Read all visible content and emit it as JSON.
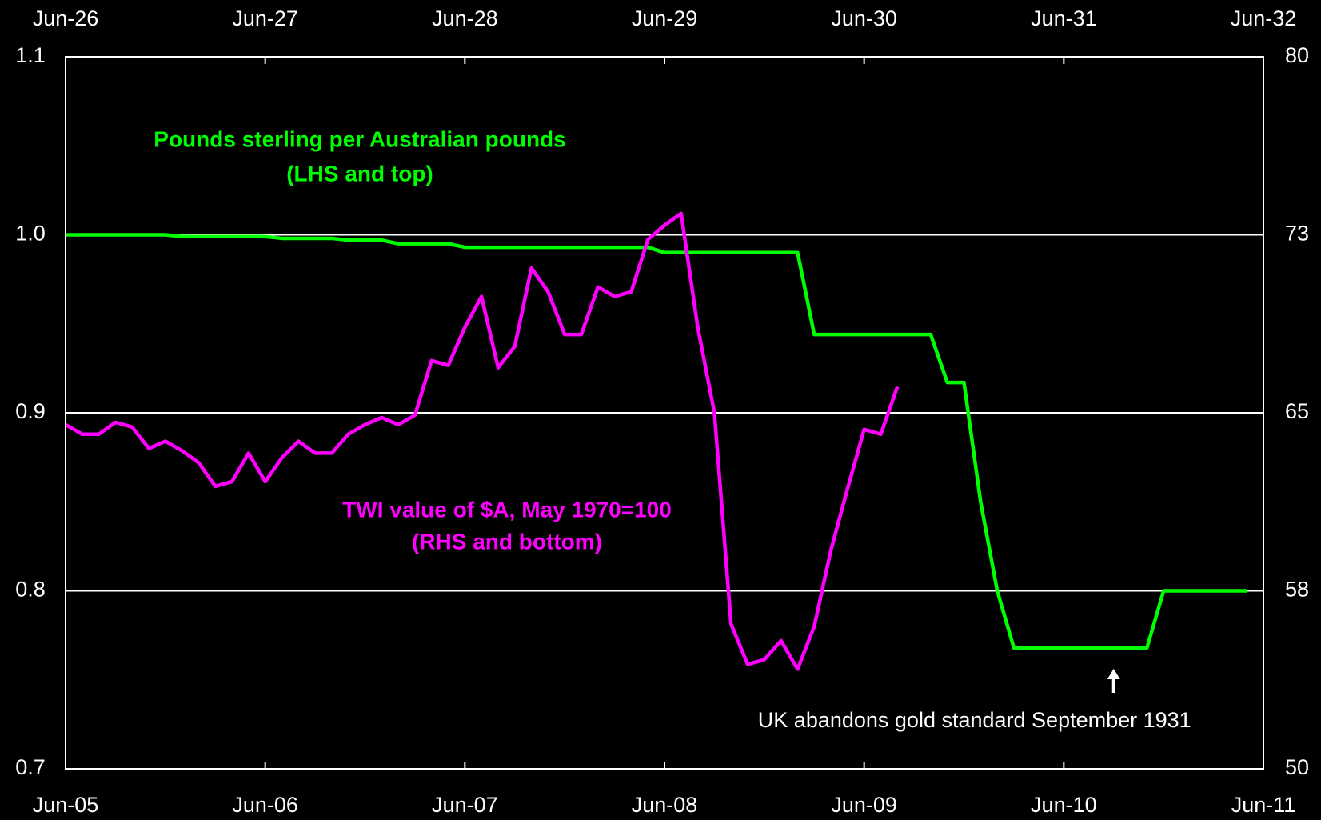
{
  "chart_data": [
    {
      "type": "line",
      "xaxis": "top",
      "xlim": [
        0,
        72
      ],
      "xticks": [
        {
          "value": 0,
          "label": "Jun-26"
        },
        {
          "value": 12,
          "label": "Jun-27"
        },
        {
          "value": 24,
          "label": "Jun-28"
        },
        {
          "value": 36,
          "label": "Jun-29"
        },
        {
          "value": 48,
          "label": "Jun-30"
        },
        {
          "value": 60,
          "label": "Jun-31"
        },
        {
          "value": 72,
          "label": "Jun-32"
        }
      ],
      "ylim": [
        0.7,
        1.1
      ],
      "yticks": [
        0.7,
        0.8,
        0.9,
        {
          "value": 1,
          "label": "1.0"
        },
        1.1
      ],
      "grid": true,
      "x": [
        0,
        1,
        2,
        3,
        4,
        5,
        6,
        7,
        8,
        9,
        10,
        11,
        12,
        13,
        14,
        15,
        16,
        17,
        18,
        19,
        20,
        21,
        22,
        23,
        24,
        25,
        26,
        27,
        28,
        29,
        30,
        31,
        32,
        33,
        34,
        35,
        36,
        37,
        38,
        39,
        40,
        41,
        42,
        43,
        44,
        45,
        46,
        47,
        48,
        49,
        50,
        51,
        52,
        53,
        54,
        55,
        56,
        57,
        58,
        59,
        60,
        61,
        62,
        63,
        64,
        65,
        66,
        67,
        68,
        69,
        70,
        71
      ],
      "series": [
        {
          "name": "Pounds sterling per Australian pounds",
          "note": "(LHS and top)",
          "color": "#00ff00",
          "values": [
            1.0,
            1.0,
            1.0,
            1.0,
            1.0,
            1.0,
            1.0,
            0.999,
            0.999,
            0.999,
            0.999,
            0.999,
            0.999,
            0.998,
            0.998,
            0.998,
            0.998,
            0.997,
            0.997,
            0.997,
            0.995,
            0.995,
            0.995,
            0.995,
            0.993,
            0.993,
            0.993,
            0.993,
            0.993,
            0.993,
            0.993,
            0.993,
            0.993,
            0.993,
            0.993,
            0.993,
            0.99,
            0.99,
            0.99,
            0.99,
            0.99,
            0.99,
            0.99,
            0.99,
            0.99,
            0.944,
            0.944,
            0.944,
            0.944,
            0.944,
            0.944,
            0.944,
            0.944,
            0.917,
            0.917,
            0.85,
            0.8,
            0.768,
            0.768,
            0.768,
            0.768,
            0.768,
            0.768,
            0.768,
            0.768,
            0.768,
            0.8,
            0.8,
            0.8,
            0.8,
            0.8,
            0.8
          ]
        }
      ],
      "annotations": [
        {
          "text": "UK abandons gold standard September 1931",
          "x": 63
        }
      ]
    },
    {
      "type": "line",
      "xaxis": "bottom",
      "xlim": [
        0,
        72
      ],
      "xticks": [
        {
          "value": 0,
          "label": "Jun-05"
        },
        {
          "value": 12,
          "label": "Jun-06"
        },
        {
          "value": 24,
          "label": "Jun-07"
        },
        {
          "value": 36,
          "label": "Jun-08"
        },
        {
          "value": 48,
          "label": "Jun-09"
        },
        {
          "value": 60,
          "label": "Jun-10"
        },
        {
          "value": 72,
          "label": "Jun-11"
        }
      ],
      "y2lim": [
        50,
        80
      ],
      "y2ticks": [
        50,
        {
          "value": 57.5,
          "label": "58"
        },
        65,
        {
          "value": 72.5,
          "label": "73"
        },
        80
      ],
      "x": [
        0,
        1,
        2,
        3,
        4,
        5,
        6,
        7,
        8,
        9,
        10,
        11,
        12,
        13,
        14,
        15,
        16,
        17,
        18,
        19,
        20,
        21,
        22,
        23,
        24,
        25,
        26,
        27,
        28,
        29,
        30,
        31,
        32,
        33,
        34,
        35,
        36,
        37,
        38,
        39,
        40,
        41,
        42,
        43,
        44,
        45,
        46,
        47,
        48,
        49,
        50
      ],
      "series": [
        {
          "name": "TWI value of $A, May 1970=100",
          "note": "(RHS and bottom)",
          "color": "#ff00ff",
          "axis": "y2",
          "values": [
            64.5,
            64.1,
            64.1,
            64.6,
            64.4,
            63.5,
            63.8,
            63.4,
            62.9,
            61.9,
            62.1,
            63.3,
            62.1,
            63.1,
            63.8,
            63.3,
            63.3,
            64.1,
            64.5,
            64.8,
            64.5,
            64.9,
            67.2,
            67.0,
            68.6,
            69.9,
            66.9,
            67.8,
            71.1,
            70.1,
            68.3,
            68.3,
            70.3,
            69.9,
            70.1,
            72.3,
            72.9,
            73.4,
            68.6,
            65.0,
            56.1,
            54.4,
            54.6,
            55.4,
            54.2,
            56.0,
            59.2,
            61.8,
            64.3,
            64.1,
            66.1
          ]
        }
      ]
    }
  ]
}
